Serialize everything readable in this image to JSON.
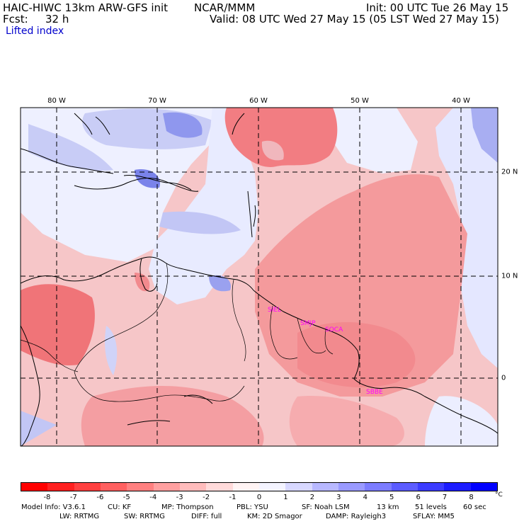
{
  "header": {
    "model": "HAIC-HIWC 13km ARW-GFS init",
    "org": "NCAR/MMM",
    "init": "Init: 00 UTC Tue 26 May 15",
    "fcst_label": "Fcst:",
    "fcst_value": "32 h",
    "valid": "Valid: 08 UTC Wed 27 May 15 (05 LST Wed 27 May 15)",
    "field": "Lifted index"
  },
  "map": {
    "lon_labels": [
      "80 W",
      "70 W",
      "60 W",
      "50 W",
      "40 W"
    ],
    "lat_labels": [
      "20 N",
      "10 N",
      "0"
    ],
    "cities": [
      {
        "name": "SIEL"
      },
      {
        "name": "SMJP"
      },
      {
        "name": "SOCA"
      },
      {
        "name": "SBBE"
      }
    ],
    "colors": {
      "unstable": "#f08080",
      "stable": "#8080ff",
      "coast": "#000000",
      "grid": "#000000",
      "city": "#ff00ff"
    }
  },
  "colorbar": {
    "ticks": [
      "-8",
      "-7",
      "-6",
      "-5",
      "-4",
      "-3",
      "-2",
      "-1",
      "0",
      "1",
      "2",
      "3",
      "4",
      "5",
      "6",
      "7",
      "8"
    ],
    "unit": "°C",
    "colors": [
      "#ff0000",
      "#ff2020",
      "#ff4040",
      "#ff6060",
      "#ff8080",
      "#ffa0a0",
      "#ffbcbc",
      "#ffdada",
      "#fff4f4",
      "#f4f4ff",
      "#d8d8ff",
      "#b8b8ff",
      "#9a9aff",
      "#7c7cff",
      "#5c5cff",
      "#3c3cff",
      "#1c1cff",
      "#0000ff"
    ]
  },
  "model_info": {
    "line1": [
      "Model Info: V3.6.1",
      "CU: KF",
      "MP: Thompson",
      "PBL: YSU",
      "SF: Noah LSM",
      "13 km",
      "51 levels",
      "60 sec"
    ],
    "line2": [
      "LW: RRTMG",
      "SW: RRTMG",
      "DIFF: full",
      "KM: 2D Smagor",
      "DAMP: Rayleigh3",
      "SFLAY: MM5"
    ]
  }
}
